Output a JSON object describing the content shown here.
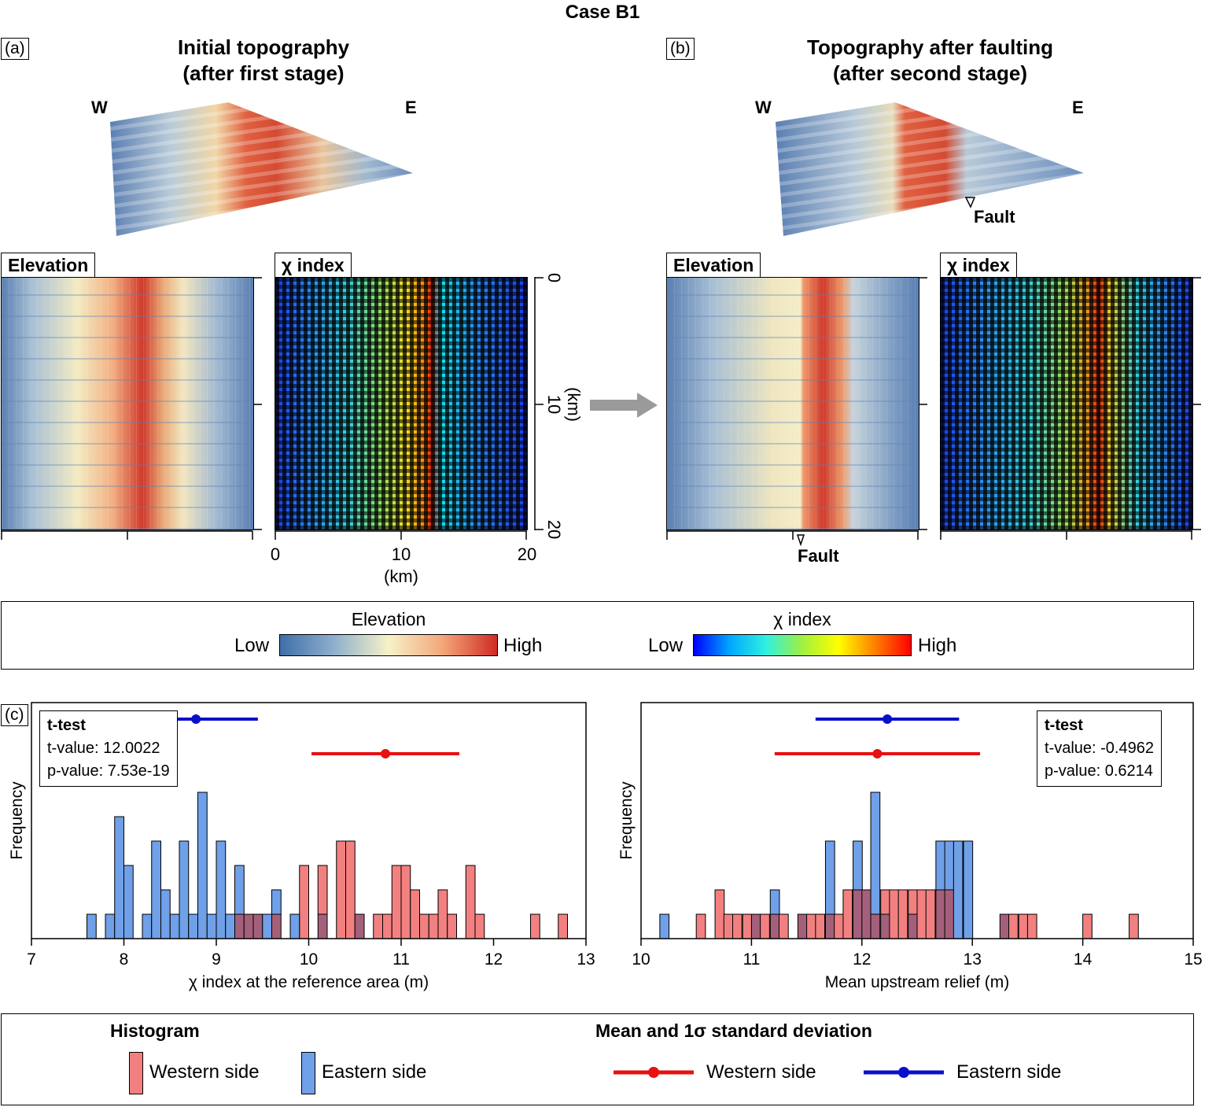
{
  "figure_title": "Case B1",
  "panel_a": {
    "label": "(a)",
    "title_line1": "Initial topography",
    "title_line2": "(after first stage)",
    "west": "W",
    "east": "E",
    "elevation_tab": "Elevation",
    "chi_tab": "χ index",
    "x_axis_ticks": [
      "0",
      "10",
      "20"
    ],
    "x_axis_unit": "(km)",
    "y_axis_ticks": [
      "0",
      "10",
      "20"
    ],
    "y_axis_unit": "(km)"
  },
  "panel_b": {
    "label": "(b)",
    "title_line1": "Topography after faulting",
    "title_line2": "(after second stage)",
    "west": "W",
    "east": "E",
    "fault_label_3d": "Fault",
    "elevation_tab": "Elevation",
    "chi_tab": "χ index",
    "fault_label_map": "Fault"
  },
  "colorbars": {
    "elevation_title": "Elevation",
    "chi_title": "χ index",
    "low": "Low",
    "high": "High"
  },
  "panel_c": {
    "label": "(c)",
    "left_ttest": {
      "title": "t-test",
      "t_value": "t-value: 12.0022",
      "p_value": "p-value: 7.53e-19"
    },
    "right_ttest": {
      "title": "t-test",
      "t_value": "t-value: -0.4962",
      "p_value": "p-value: 0.6214"
    }
  },
  "legend": {
    "histogram_title": "Histogram",
    "mean_title": "Mean and 1σ standard deviation",
    "western": "Western side",
    "eastern": "Eastern side"
  },
  "colors": {
    "western_hist": "#f28080",
    "eastern_hist": "#6fa0e8",
    "overlap_hist": "#a4607a",
    "western_mean": "#e81010",
    "eastern_mean": "#0a10c8"
  },
  "chart_data": [
    {
      "type": "bar",
      "subtype": "histogram",
      "xlabel": "χ index at the reference area (m)",
      "ylabel": "Frequency",
      "xlim": [
        7,
        13
      ],
      "xticks": [
        7,
        8,
        9,
        10,
        11,
        12,
        13
      ],
      "ylim": [
        0,
        8
      ],
      "bin_width": 0.1,
      "series": [
        {
          "name": "Western side",
          "bins": [
            9.2,
            9.3,
            9.4,
            9.6,
            9.9,
            10.1,
            10.3,
            10.4,
            10.5,
            10.7,
            10.8,
            10.9,
            11.0,
            11.1,
            11.2,
            11.3,
            11.4,
            11.5,
            11.7,
            11.8,
            12.4,
            12.7
          ],
          "counts": [
            1,
            1,
            1,
            1,
            3,
            3,
            4,
            4,
            1,
            1,
            1,
            3,
            3,
            2,
            1,
            1,
            2,
            1,
            3,
            1,
            1,
            1
          ]
        },
        {
          "name": "Eastern side",
          "bins": [
            7.6,
            7.8,
            7.9,
            8.0,
            8.2,
            8.3,
            8.4,
            8.5,
            8.6,
            8.7,
            8.8,
            8.9,
            9.0,
            9.1,
            9.2,
            9.3,
            9.4,
            9.5,
            9.6,
            9.8,
            10.1,
            10.5
          ],
          "counts": [
            1,
            1,
            5,
            3,
            1,
            4,
            2,
            1,
            4,
            1,
            6,
            1,
            4,
            1,
            3,
            1,
            1,
            1,
            2,
            1,
            1,
            1
          ]
        }
      ],
      "mean_std": [
        {
          "name": "Western side",
          "mean": 10.83,
          "std": 0.8
        },
        {
          "name": "Eastern side",
          "mean": 8.78,
          "std": 0.67
        }
      ]
    },
    {
      "type": "bar",
      "subtype": "histogram",
      "xlabel": "Mean upstream relief (m)",
      "ylabel": "Frequency",
      "xlim": [
        10,
        15
      ],
      "xticks": [
        10,
        11,
        12,
        13,
        14,
        15
      ],
      "ylim": [
        0,
        8
      ],
      "bin_width": 0.0833,
      "series": [
        {
          "name": "Western side",
          "bins": [
            10.5,
            10.67,
            10.75,
            10.83,
            10.92,
            11.0,
            11.08,
            11.17,
            11.25,
            11.42,
            11.5,
            11.58,
            11.67,
            11.75,
            11.83,
            11.92,
            12.0,
            12.08,
            12.17,
            12.25,
            12.33,
            12.42,
            12.5,
            12.58,
            12.67,
            12.75,
            13.25,
            13.33,
            13.42,
            13.5,
            14.0,
            14.42
          ],
          "counts": [
            1,
            2,
            1,
            1,
            1,
            1,
            1,
            1,
            1,
            1,
            1,
            1,
            1,
            1,
            2,
            2,
            2,
            1,
            2,
            2,
            2,
            2,
            2,
            2,
            2,
            2,
            1,
            1,
            1,
            1,
            1,
            1
          ]
        },
        {
          "name": "Eastern side",
          "bins": [
            10.17,
            11.0,
            11.17,
            11.42,
            11.67,
            11.92,
            12.0,
            12.08,
            12.17,
            12.42,
            12.67,
            12.75,
            12.83,
            12.92,
            13.25
          ],
          "counts": [
            1,
            1,
            2,
            1,
            4,
            4,
            2,
            6,
            1,
            1,
            4,
            4,
            4,
            4,
            1
          ]
        }
      ],
      "mean_std": [
        {
          "name": "Western side",
          "mean": 12.14,
          "std": 0.93
        },
        {
          "name": "Eastern side",
          "mean": 12.23,
          "std": 0.65
        }
      ]
    }
  ]
}
